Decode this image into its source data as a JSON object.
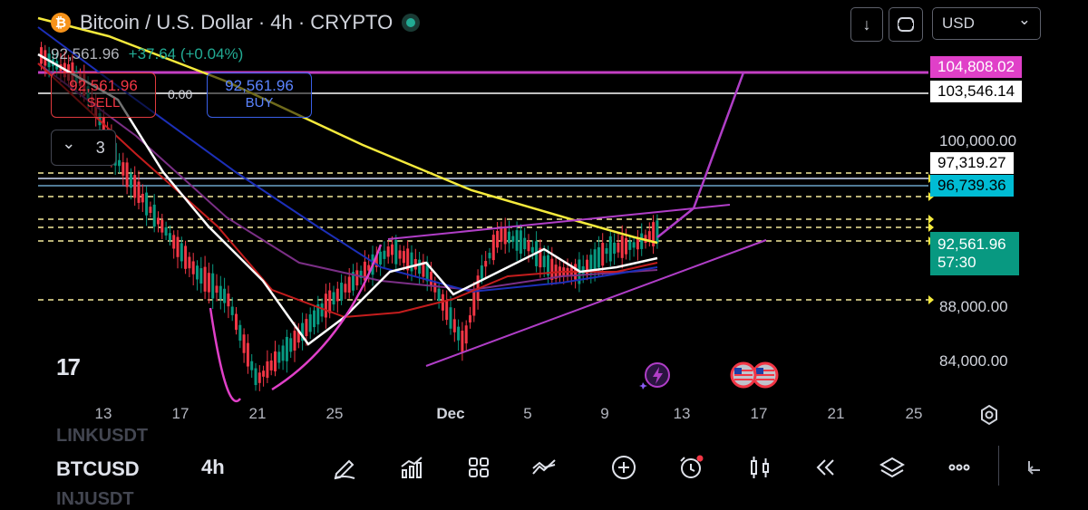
{
  "header": {
    "coin_glyph": "₿",
    "title": "Bitcoin / U.S. Dollar · 4h · CRYPTO",
    "currency_select": "USD",
    "currency_chevron": "⌄",
    "down_icon_glyph": "↓",
    "live_status_color": "#22ab94"
  },
  "ohlc": {
    "price": "92,561.96",
    "change": "+37.64 (+0.04%)"
  },
  "trade": {
    "sell_price": "92,561.96",
    "sell_label": "SELL",
    "spread": "0.00",
    "buy_price": "92,561.96",
    "buy_label": "BUY"
  },
  "indicators": {
    "collapse_chevron": "⌄",
    "count": "3"
  },
  "price_labels": {
    "line_1": {
      "text": "104,808.02",
      "bg": "#e040c8",
      "fg": "#ffffff"
    },
    "line_2": {
      "text": "103,546.14",
      "bg": "#ffffff",
      "fg": "#000000"
    },
    "line_3": {
      "text": "97,319.27",
      "bg": "#ffffff",
      "fg": "#000000"
    },
    "line_4": {
      "text": "96,739.36",
      "bg": "#00bcd4",
      "fg": "#000000"
    },
    "last": {
      "text": "92,561.96",
      "countdown": "57:30",
      "bg": "#089981"
    }
  },
  "price_axis": [
    "100,000.00",
    "88,000.00",
    "84,000.00"
  ],
  "date_axis": [
    "13",
    "17",
    "21",
    "25",
    "Dec",
    "5",
    "9",
    "13",
    "17",
    "21",
    "25"
  ],
  "logo_text": "17",
  "bottom": {
    "ghost_above": "LINKUSDT",
    "symbol": "BTCUSD",
    "ghost_below": "INJUSDT",
    "timeframe": "4h",
    "tools": [
      "pencil-icon",
      "indicators-icon",
      "grid-icon",
      "compare-icon",
      "plus-icon",
      "alert-icon",
      "candles-icon",
      "replay-icon",
      "layers-icon",
      "more-icon",
      "back-icon"
    ]
  },
  "colors": {
    "up": "#089981",
    "down": "#f23645",
    "ma_white": "#ffffff",
    "ma_yellow": "#f5ea3c",
    "ma_red": "#c41d1d",
    "ma_blue": "#1c2fb8",
    "ma_purple": "#7b2f86",
    "drawing": "#b03ec7"
  }
}
